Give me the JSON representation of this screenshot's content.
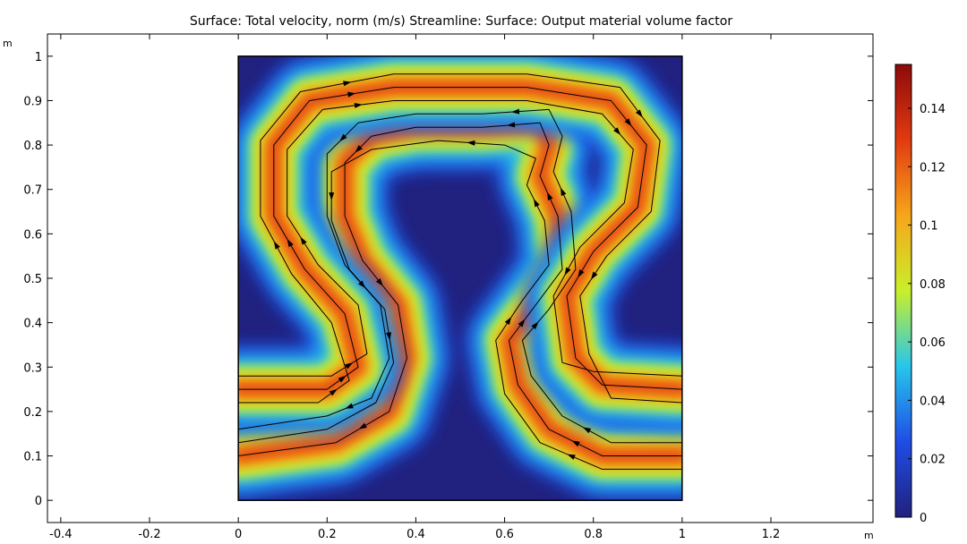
{
  "chart_data": {
    "type": "heatmap",
    "title": "Surface: Total velocity, norm (m/s)  Streamline:   Surface: Output material volume factor",
    "x_unit": "m",
    "y_unit": "m",
    "xlim": [
      -0.43,
      1.43
    ],
    "ylim": [
      -0.05,
      1.05
    ],
    "x_ticks": [
      -0.4,
      -0.2,
      0,
      0.2,
      0.4,
      0.6,
      0.8,
      1,
      1.2
    ],
    "x_tick_labels": [
      "-0.4",
      "-0.2",
      "0",
      "0.2",
      "0.4",
      "0.6",
      "0.8",
      "1",
      "1.2"
    ],
    "y_ticks": [
      0,
      0.1,
      0.2,
      0.3,
      0.4,
      0.5,
      0.6,
      0.7,
      0.8,
      0.9,
      1
    ],
    "y_tick_labels": [
      "0",
      "0.1",
      "0.2",
      "0.3",
      "0.4",
      "0.5",
      "0.6",
      "0.7",
      "0.8",
      "0.9",
      "1"
    ],
    "domain": {
      "x": [
        0,
        1
      ],
      "y": [
        0,
        1
      ]
    },
    "colorbar": {
      "range": [
        0,
        0.155
      ],
      "ticks": [
        0,
        0.02,
        0.04,
        0.06,
        0.08,
        0.1,
        0.12,
        0.14
      ],
      "tick_labels": [
        "0",
        "0.02",
        "0.04",
        "0.06",
        "0.08",
        "0.1",
        "0.12",
        "0.14"
      ],
      "colormap": "rainbow",
      "colors": [
        "#21217f",
        "#1f4de6",
        "#27c6ec",
        "#c9ef2a",
        "#f7a51b",
        "#e23a10",
        "#8c0a0a"
      ]
    },
    "background_color": "#21217f",
    "channel_center_lines": [
      [
        [
          1.0,
          0.1
        ],
        [
          0.82,
          0.1
        ],
        [
          0.7,
          0.16
        ],
        [
          0.63,
          0.26
        ],
        [
          0.61,
          0.36
        ],
        [
          0.67,
          0.44
        ],
        [
          0.73,
          0.52
        ],
        [
          0.72,
          0.64
        ],
        [
          0.68,
          0.73
        ],
        [
          0.7,
          0.8
        ],
        [
          0.68,
          0.85
        ],
        [
          0.55,
          0.84
        ],
        [
          0.4,
          0.84
        ],
        [
          0.3,
          0.82
        ],
        [
          0.24,
          0.76
        ],
        [
          0.24,
          0.64
        ],
        [
          0.28,
          0.54
        ],
        [
          0.36,
          0.44
        ],
        [
          0.38,
          0.32
        ],
        [
          0.34,
          0.2
        ],
        [
          0.22,
          0.13
        ],
        [
          0.0,
          0.1
        ]
      ],
      [
        [
          0.0,
          0.25
        ],
        [
          0.2,
          0.25
        ],
        [
          0.27,
          0.3
        ],
        [
          0.24,
          0.42
        ],
        [
          0.15,
          0.52
        ],
        [
          0.08,
          0.64
        ],
        [
          0.08,
          0.8
        ],
        [
          0.16,
          0.9
        ],
        [
          0.35,
          0.93
        ],
        [
          0.65,
          0.93
        ],
        [
          0.84,
          0.9
        ],
        [
          0.92,
          0.8
        ],
        [
          0.9,
          0.66
        ],
        [
          0.8,
          0.56
        ],
        [
          0.74,
          0.46
        ],
        [
          0.76,
          0.32
        ],
        [
          0.82,
          0.26
        ],
        [
          1.0,
          0.25
        ]
      ]
    ],
    "streamlines": [
      [
        [
          1.0,
          0.07
        ],
        [
          0.82,
          0.07
        ],
        [
          0.68,
          0.13
        ],
        [
          0.6,
          0.24
        ],
        [
          0.58,
          0.36
        ],
        [
          0.64,
          0.45
        ],
        [
          0.7,
          0.53
        ],
        [
          0.69,
          0.63
        ],
        [
          0.65,
          0.71
        ],
        [
          0.67,
          0.77
        ],
        [
          0.6,
          0.8
        ],
        [
          0.45,
          0.81
        ],
        [
          0.3,
          0.79
        ],
        [
          0.21,
          0.74
        ],
        [
          0.21,
          0.63
        ],
        [
          0.25,
          0.52
        ],
        [
          0.33,
          0.43
        ],
        [
          0.35,
          0.31
        ],
        [
          0.31,
          0.22
        ],
        [
          0.2,
          0.16
        ],
        [
          0.0,
          0.13
        ]
      ],
      [
        [
          1.0,
          0.1
        ],
        [
          0.82,
          0.1
        ],
        [
          0.7,
          0.16
        ],
        [
          0.63,
          0.26
        ],
        [
          0.61,
          0.36
        ],
        [
          0.67,
          0.44
        ],
        [
          0.73,
          0.52
        ],
        [
          0.72,
          0.64
        ],
        [
          0.68,
          0.73
        ],
        [
          0.7,
          0.8
        ],
        [
          0.68,
          0.85
        ],
        [
          0.55,
          0.84
        ],
        [
          0.4,
          0.84
        ],
        [
          0.3,
          0.82
        ],
        [
          0.24,
          0.76
        ],
        [
          0.24,
          0.64
        ],
        [
          0.28,
          0.54
        ],
        [
          0.36,
          0.44
        ],
        [
          0.38,
          0.32
        ],
        [
          0.34,
          0.2
        ],
        [
          0.22,
          0.13
        ],
        [
          0.0,
          0.1
        ]
      ],
      [
        [
          1.0,
          0.13
        ],
        [
          0.84,
          0.13
        ],
        [
          0.73,
          0.19
        ],
        [
          0.66,
          0.28
        ],
        [
          0.64,
          0.36
        ],
        [
          0.7,
          0.43
        ],
        [
          0.76,
          0.52
        ],
        [
          0.75,
          0.65
        ],
        [
          0.71,
          0.74
        ],
        [
          0.73,
          0.82
        ],
        [
          0.7,
          0.88
        ],
        [
          0.55,
          0.87
        ],
        [
          0.4,
          0.87
        ],
        [
          0.27,
          0.85
        ],
        [
          0.2,
          0.78
        ],
        [
          0.2,
          0.64
        ],
        [
          0.24,
          0.53
        ],
        [
          0.32,
          0.44
        ],
        [
          0.34,
          0.32
        ],
        [
          0.3,
          0.23
        ],
        [
          0.2,
          0.19
        ],
        [
          0.0,
          0.16
        ]
      ],
      [
        [
          0.0,
          0.22
        ],
        [
          0.18,
          0.22
        ],
        [
          0.25,
          0.27
        ],
        [
          0.21,
          0.4
        ],
        [
          0.12,
          0.51
        ],
        [
          0.05,
          0.64
        ],
        [
          0.05,
          0.81
        ],
        [
          0.14,
          0.92
        ],
        [
          0.35,
          0.96
        ],
        [
          0.65,
          0.96
        ],
        [
          0.86,
          0.93
        ],
        [
          0.95,
          0.81
        ],
        [
          0.93,
          0.65
        ],
        [
          0.83,
          0.55
        ],
        [
          0.77,
          0.46
        ],
        [
          0.79,
          0.33
        ],
        [
          0.84,
          0.23
        ],
        [
          1.0,
          0.22
        ]
      ],
      [
        [
          0.0,
          0.25
        ],
        [
          0.2,
          0.25
        ],
        [
          0.27,
          0.3
        ],
        [
          0.24,
          0.42
        ],
        [
          0.15,
          0.52
        ],
        [
          0.08,
          0.64
        ],
        [
          0.08,
          0.8
        ],
        [
          0.16,
          0.9
        ],
        [
          0.35,
          0.93
        ],
        [
          0.65,
          0.93
        ],
        [
          0.84,
          0.9
        ],
        [
          0.92,
          0.8
        ],
        [
          0.9,
          0.66
        ],
        [
          0.8,
          0.56
        ],
        [
          0.74,
          0.46
        ],
        [
          0.76,
          0.32
        ],
        [
          0.82,
          0.26
        ],
        [
          1.0,
          0.25
        ]
      ],
      [
        [
          0.0,
          0.28
        ],
        [
          0.21,
          0.28
        ],
        [
          0.29,
          0.33
        ],
        [
          0.27,
          0.44
        ],
        [
          0.18,
          0.53
        ],
        [
          0.11,
          0.64
        ],
        [
          0.11,
          0.79
        ],
        [
          0.19,
          0.88
        ],
        [
          0.35,
          0.9
        ],
        [
          0.65,
          0.9
        ],
        [
          0.82,
          0.87
        ],
        [
          0.89,
          0.79
        ],
        [
          0.87,
          0.67
        ],
        [
          0.77,
          0.57
        ],
        [
          0.71,
          0.46
        ],
        [
          0.73,
          0.31
        ],
        [
          0.8,
          0.29
        ],
        [
          1.0,
          0.28
        ]
      ]
    ]
  }
}
